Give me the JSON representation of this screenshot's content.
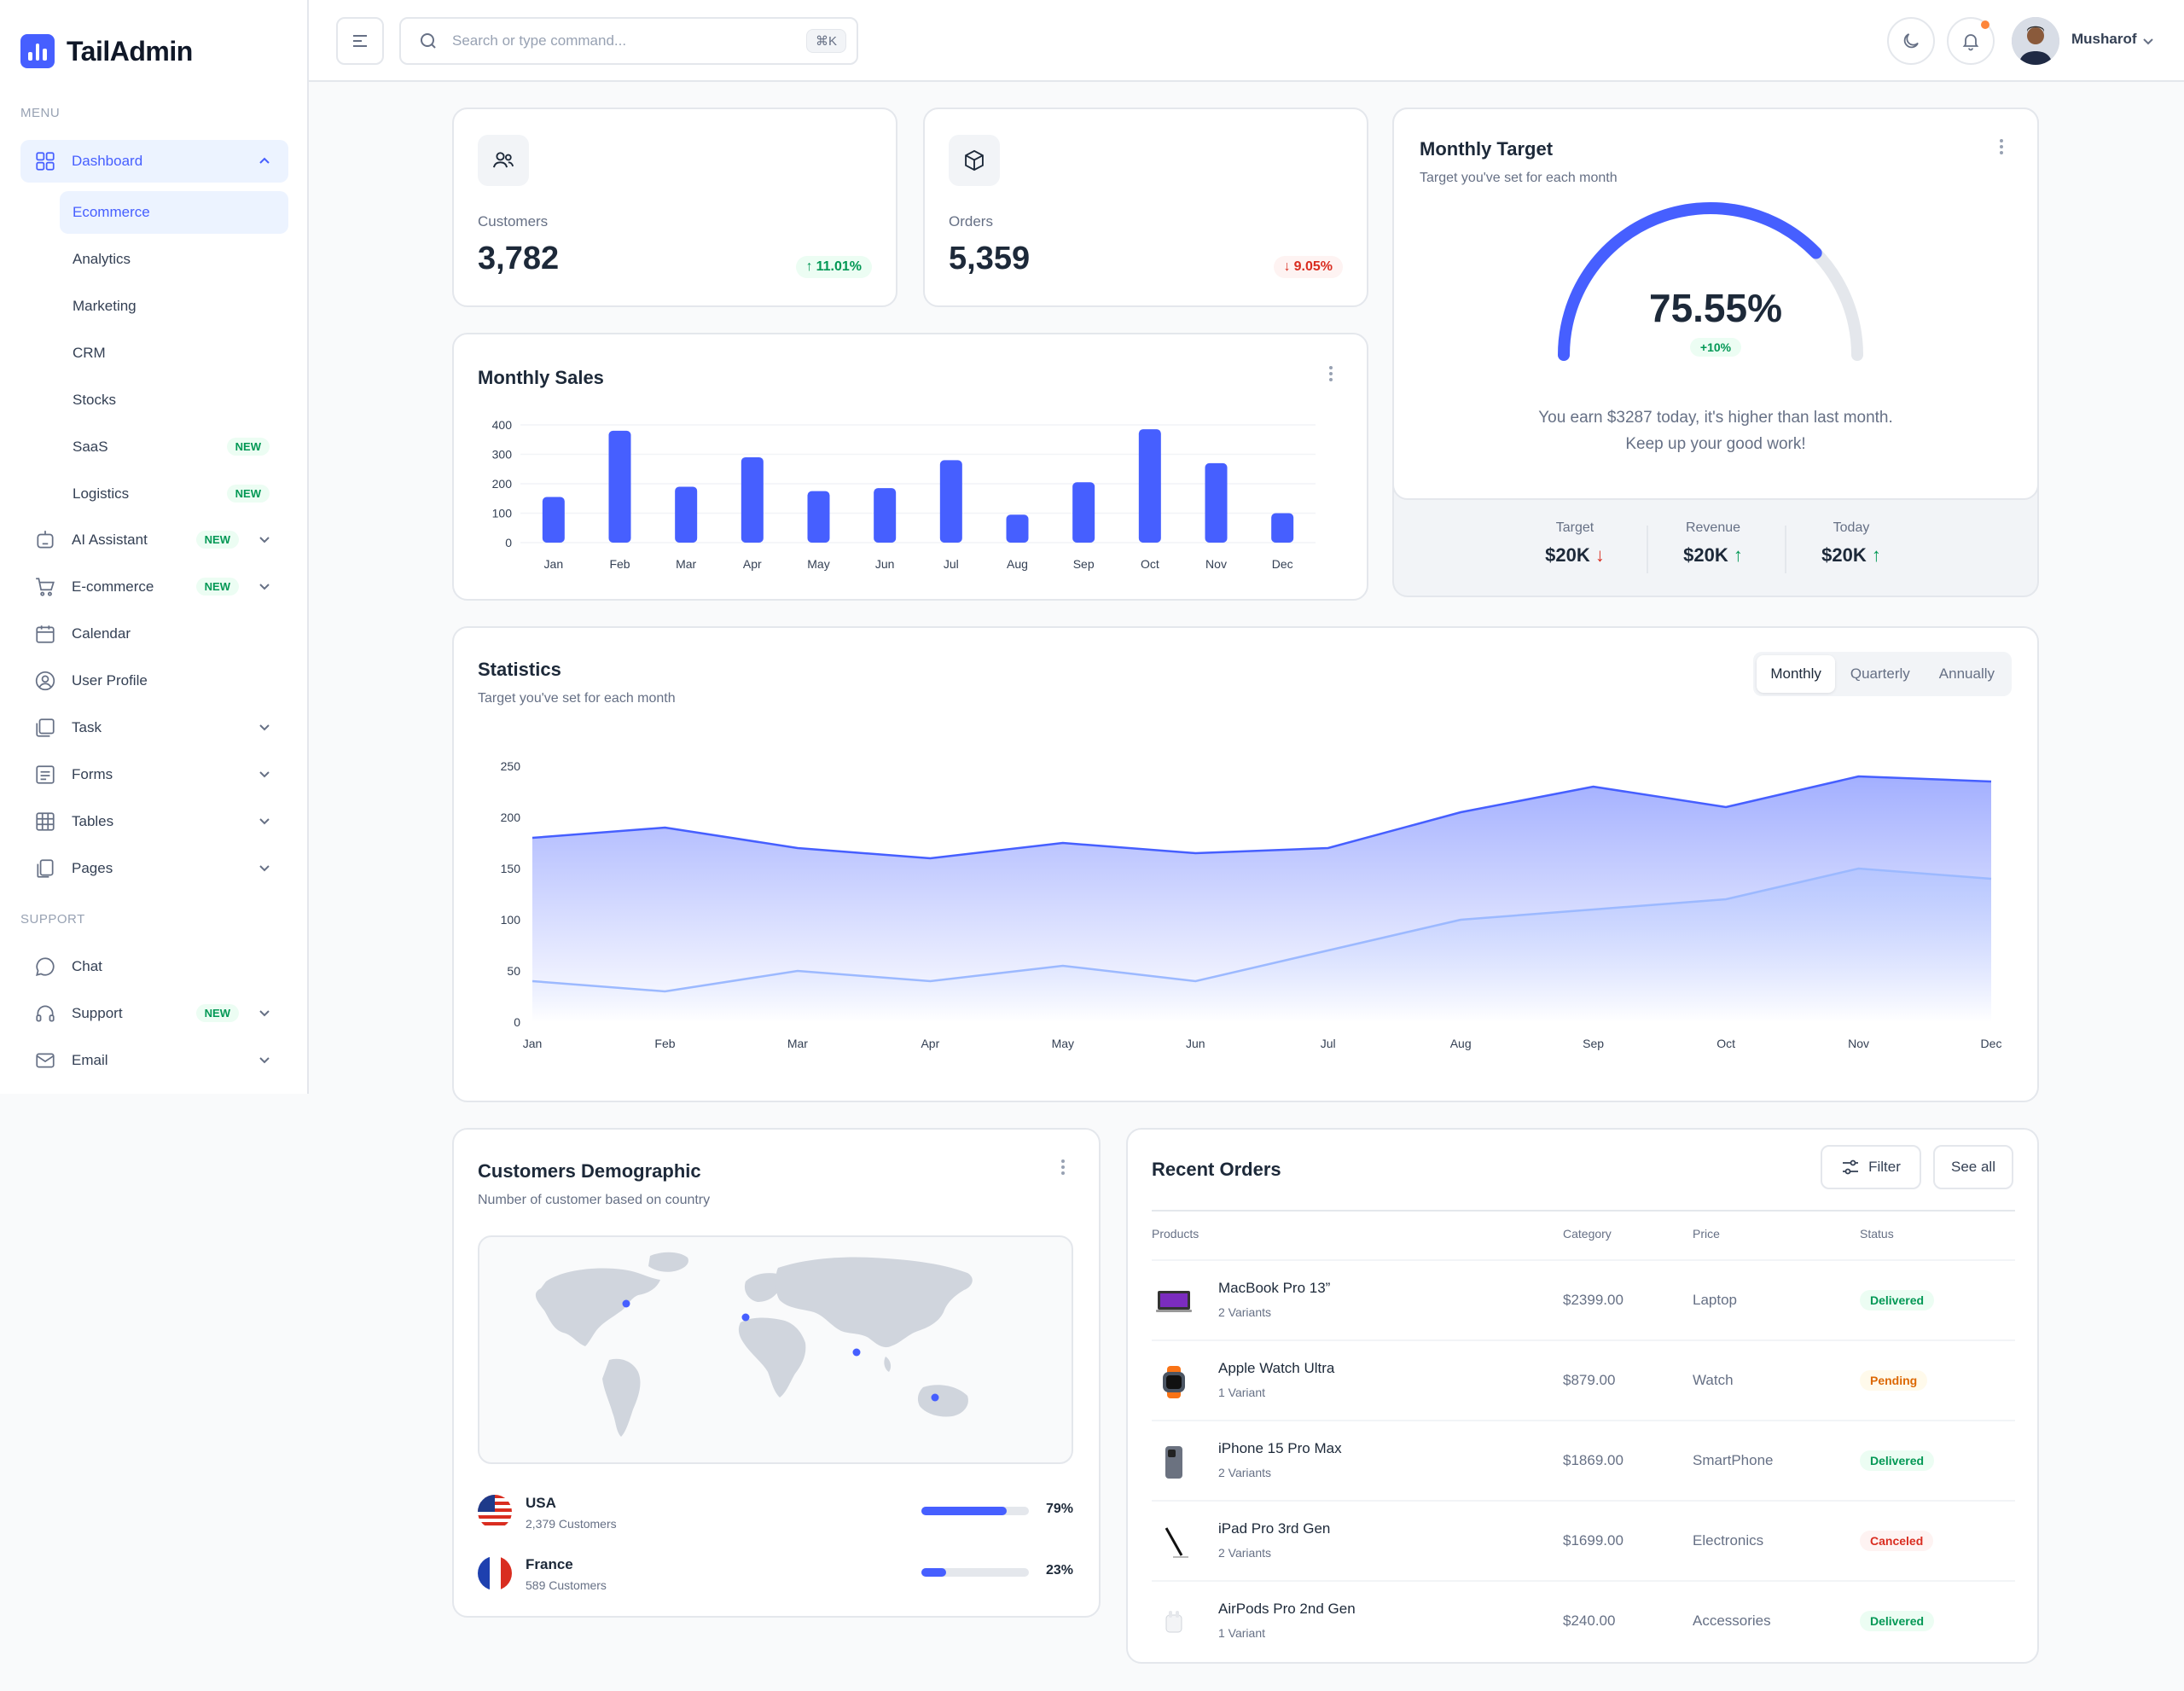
{
  "brand": {
    "name": "TailAdmin"
  },
  "sidebar": {
    "menu_label": "MENU",
    "support_label": "SUPPORT",
    "dashboard": {
      "label": "Dashboard",
      "subitems": [
        {
          "label": "Ecommerce",
          "badge": ""
        },
        {
          "label": "Analytics",
          "badge": ""
        },
        {
          "label": "Marketing",
          "badge": ""
        },
        {
          "label": "CRM",
          "badge": ""
        },
        {
          "label": "Stocks",
          "badge": ""
        },
        {
          "label": "SaaS",
          "badge": "NEW"
        },
        {
          "label": "Logistics",
          "badge": "NEW"
        }
      ]
    },
    "items": [
      {
        "label": "AI Assistant",
        "badge": "NEW",
        "icon": "robot-icon"
      },
      {
        "label": "E-commerce",
        "badge": "NEW",
        "icon": "cart-icon"
      },
      {
        "label": "Calendar",
        "badge": "",
        "icon": "calendar-icon"
      },
      {
        "label": "User Profile",
        "badge": "",
        "icon": "user-circle-icon"
      },
      {
        "label": "Task",
        "badge": "",
        "icon": "task-icon"
      },
      {
        "label": "Forms",
        "badge": "",
        "icon": "forms-icon"
      },
      {
        "label": "Tables",
        "badge": "",
        "icon": "table-icon"
      },
      {
        "label": "Pages",
        "badge": "",
        "icon": "pages-icon"
      }
    ],
    "support_items": [
      {
        "label": "Chat",
        "badge": "",
        "icon": "chat-icon"
      },
      {
        "label": "Support",
        "badge": "NEW",
        "icon": "headset-icon"
      },
      {
        "label": "Email",
        "badge": "",
        "icon": "mail-icon"
      }
    ]
  },
  "header": {
    "search_placeholder": "Search or type command...",
    "shortcut": "⌘K",
    "user_name": "Musharof"
  },
  "metrics": [
    {
      "label": "Customers",
      "value": "3,782",
      "delta": "11.01%",
      "direction": "up"
    },
    {
      "label": "Orders",
      "value": "5,359",
      "delta": "9.05%",
      "direction": "down"
    }
  ],
  "monthly_sales": {
    "title": "Monthly Sales"
  },
  "monthly_target": {
    "title": "Monthly Target",
    "subtitle": "Target you've set for each month",
    "percent": "75.55%",
    "percent_value": 75.55,
    "badge": "+10%",
    "message_line1": "You earn $3287 today, it's higher than last month.",
    "message_line2": "Keep up your good work!",
    "stats": [
      {
        "label": "Target",
        "value": "$20K",
        "direction": "down"
      },
      {
        "label": "Revenue",
        "value": "$20K",
        "direction": "up"
      },
      {
        "label": "Today",
        "value": "$20K",
        "direction": "up"
      }
    ]
  },
  "statistics": {
    "title": "Statistics",
    "subtitle": "Target you've set for each month",
    "tabs": [
      "Monthly",
      "Quarterly",
      "Annually"
    ],
    "active_tab": "Monthly"
  },
  "demographic": {
    "title": "Customers Demographic",
    "subtitle": "Number of customer based on country",
    "countries": [
      {
        "name": "USA",
        "customers": "2,379 Customers",
        "percent": "79%",
        "value": 79
      },
      {
        "name": "France",
        "customers": "589 Customers",
        "percent": "23%",
        "value": 23
      }
    ]
  },
  "recent_orders": {
    "title": "Recent Orders",
    "filter_label": "Filter",
    "see_all_label": "See all",
    "columns": [
      "Products",
      "Category",
      "Price",
      "Status"
    ],
    "rows": [
      {
        "name": "MacBook Pro 13”",
        "variants": "2 Variants",
        "price": "$2399.00",
        "category": "Laptop",
        "status": "Delivered",
        "status_kind": "green",
        "thumb": "laptop"
      },
      {
        "name": "Apple Watch Ultra",
        "variants": "1 Variant",
        "price": "$879.00",
        "category": "Watch",
        "status": "Pending",
        "status_kind": "orange",
        "thumb": "watch"
      },
      {
        "name": "iPhone 15 Pro Max",
        "variants": "2 Variants",
        "price": "$1869.00",
        "category": "SmartPhone",
        "status": "Delivered",
        "status_kind": "green",
        "thumb": "phone"
      },
      {
        "name": "iPad Pro 3rd Gen",
        "variants": "2 Variants",
        "price": "$1699.00",
        "category": "Electronics",
        "status": "Canceled",
        "status_kind": "red",
        "thumb": "pencil"
      },
      {
        "name": "AirPods Pro 2nd Gen",
        "variants": "1 Variant",
        "price": "$240.00",
        "category": "Accessories",
        "status": "Delivered",
        "status_kind": "green",
        "thumb": "airpods"
      }
    ]
  },
  "colors": {
    "primary": "#465fff",
    "secondary": "#9cb9ff",
    "success": "#039855",
    "danger": "#d92d20",
    "warning": "#dc6803"
  },
  "chart_data": [
    {
      "type": "bar",
      "title": "Monthly Sales",
      "categories": [
        "Jan",
        "Feb",
        "Mar",
        "Apr",
        "May",
        "Jun",
        "Jul",
        "Aug",
        "Sep",
        "Oct",
        "Nov",
        "Dec"
      ],
      "values": [
        155,
        380,
        190,
        290,
        175,
        185,
        280,
        95,
        205,
        385,
        270,
        100
      ],
      "ylim": [
        0,
        400
      ],
      "yticks": [
        0,
        100,
        200,
        300,
        400
      ],
      "grid": true
    },
    {
      "type": "area",
      "title": "Statistics",
      "categories": [
        "Jan",
        "Feb",
        "Mar",
        "Apr",
        "May",
        "Jun",
        "Jul",
        "Aug",
        "Sep",
        "Oct",
        "Nov",
        "Dec"
      ],
      "series": [
        {
          "values": [
            180,
            190,
            170,
            160,
            175,
            165,
            170,
            205,
            230,
            210,
            240,
            235
          ]
        },
        {
          "values": [
            40,
            30,
            50,
            40,
            55,
            40,
            70,
            100,
            110,
            120,
            150,
            140
          ]
        }
      ],
      "ylim": [
        0,
        250
      ],
      "yticks": [
        0,
        50,
        100,
        150,
        200,
        250
      ],
      "grid": false
    }
  ]
}
